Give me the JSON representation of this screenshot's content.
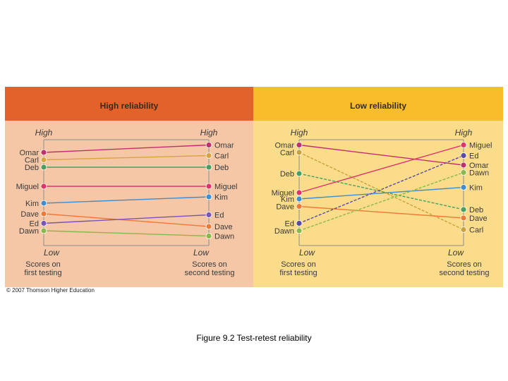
{
  "copyright": "© 2007 Thomson Higher Education",
  "caption": "Figure 9.2  Test-retest reliability",
  "colors": {
    "background": "#ffffff",
    "left_header": "#e2622a",
    "left_body": "#f5c7a6",
    "right_header": "#f9bd2c",
    "right_body": "#fbdc8a",
    "text": "#3a3a3a"
  },
  "panels": [
    {
      "id": "high",
      "title": "High reliability",
      "axis_top": "High",
      "axis_bottom": "Low",
      "left_caption": [
        "Scores on",
        "first testing"
      ],
      "right_caption": [
        "Scores on",
        "second testing"
      ],
      "left_labels": [
        {
          "text": "Omar",
          "pos": 0.12
        },
        {
          "text": "Carl",
          "pos": 0.19
        },
        {
          "text": "Deb",
          "pos": 0.26
        },
        {
          "text": "Miguel",
          "pos": 0.44
        },
        {
          "text": "Kim",
          "pos": 0.6
        },
        {
          "text": "Dave",
          "pos": 0.7
        },
        {
          "text": "Ed",
          "pos": 0.79
        },
        {
          "text": "Dawn",
          "pos": 0.86
        }
      ],
      "right_labels": [
        {
          "text": "Omar",
          "pos": 0.05
        },
        {
          "text": "Carl",
          "pos": 0.15
        },
        {
          "text": "Deb",
          "pos": 0.26
        },
        {
          "text": "Miguel",
          "pos": 0.44
        },
        {
          "text": "Kim",
          "pos": 0.54
        },
        {
          "text": "Ed",
          "pos": 0.71
        },
        {
          "text": "Dave",
          "pos": 0.82
        },
        {
          "text": "Dawn",
          "pos": 0.91
        }
      ],
      "connections": [
        {
          "from": 0.12,
          "to": 0.05,
          "color": "#c0306e",
          "style": "solid"
        },
        {
          "from": 0.19,
          "to": 0.15,
          "color": "#d9a440",
          "style": "solid"
        },
        {
          "from": 0.26,
          "to": 0.26,
          "color": "#47a05f",
          "style": "solid"
        },
        {
          "from": 0.44,
          "to": 0.44,
          "color": "#e0346a",
          "style": "solid"
        },
        {
          "from": 0.6,
          "to": 0.54,
          "color": "#3f8fd0",
          "style": "solid"
        },
        {
          "from": 0.7,
          "to": 0.82,
          "color": "#ef7a37",
          "style": "solid"
        },
        {
          "from": 0.79,
          "to": 0.71,
          "color": "#7a54b8",
          "style": "solid"
        },
        {
          "from": 0.86,
          "to": 0.91,
          "color": "#89b84b",
          "style": "solid"
        }
      ]
    },
    {
      "id": "low",
      "title": "Low reliability",
      "axis_top": "High",
      "axis_bottom": "Low",
      "left_caption": [
        "Scores on",
        "first testing"
      ],
      "right_caption": [
        "Scores on",
        "second testing"
      ],
      "left_labels": [
        {
          "text": "Omar",
          "pos": 0.05
        },
        {
          "text": "Carl",
          "pos": 0.12
        },
        {
          "text": "Deb",
          "pos": 0.32
        },
        {
          "text": "Miguel",
          "pos": 0.5
        },
        {
          "text": "Kim",
          "pos": 0.56
        },
        {
          "text": "Dave",
          "pos": 0.63
        },
        {
          "text": "Ed",
          "pos": 0.79
        },
        {
          "text": "Dawn",
          "pos": 0.86
        }
      ],
      "right_labels": [
        {
          "text": "Miguel",
          "pos": 0.05
        },
        {
          "text": "Ed",
          "pos": 0.15
        },
        {
          "text": "Omar",
          "pos": 0.24
        },
        {
          "text": "Dawn",
          "pos": 0.31
        },
        {
          "text": "Kim",
          "pos": 0.45
        },
        {
          "text": "Deb",
          "pos": 0.66
        },
        {
          "text": "Dave",
          "pos": 0.74
        },
        {
          "text": "Carl",
          "pos": 0.85
        }
      ],
      "connections": [
        {
          "from": 0.05,
          "to": 0.24,
          "color": "#c0306e",
          "style": "solid"
        },
        {
          "from": 0.12,
          "to": 0.85,
          "color": "#c9a23c",
          "style": "dashed"
        },
        {
          "from": 0.32,
          "to": 0.66,
          "color": "#47a05f",
          "style": "dashed"
        },
        {
          "from": 0.5,
          "to": 0.05,
          "color": "#e0346a",
          "style": "solid"
        },
        {
          "from": 0.56,
          "to": 0.45,
          "color": "#3f8fd0",
          "style": "solid"
        },
        {
          "from": 0.63,
          "to": 0.74,
          "color": "#ef7a37",
          "style": "solid"
        },
        {
          "from": 0.79,
          "to": 0.15,
          "color": "#5a4aa8",
          "style": "dashed"
        },
        {
          "from": 0.86,
          "to": 0.31,
          "color": "#89b84b",
          "style": "dashed"
        }
      ]
    }
  ]
}
